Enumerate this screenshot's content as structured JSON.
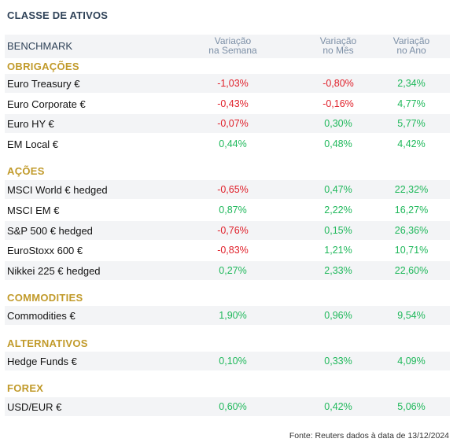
{
  "title": "CLASSE DE ATIVOS",
  "header": {
    "benchmark": "BENCHMARK",
    "week_l1": "Variação",
    "week_l2": "na Semana",
    "month_l1": "Variação",
    "month_l2": "no Mês",
    "year_l1": "Variação",
    "year_l2": "no Ano"
  },
  "sections": [
    {
      "title": "OBRIGAÇÕES"
    },
    {
      "title": "AÇÕES"
    },
    {
      "title": "COMMODITIES"
    },
    {
      "title": "ALTERNATIVOS"
    },
    {
      "title": "FOREX"
    }
  ],
  "rows": [
    {
      "name": "Euro Treasury €",
      "week": "-1,03%",
      "month": "-0,80%",
      "year": "2,34%"
    },
    {
      "name": "Euro Corporate €",
      "week": "-0,43%",
      "month": "-0,16%",
      "year": "4,77%"
    },
    {
      "name": "Euro HY €",
      "week": "-0,07%",
      "month": "0,30%",
      "year": "5,77%"
    },
    {
      "name": "EM Local €",
      "week": "0,44%",
      "month": "0,48%",
      "year": "4,42%"
    },
    {
      "name": "MSCI World € hedged",
      "week": "-0,65%",
      "month": "0,47%",
      "year": "22,32%"
    },
    {
      "name": "MSCI EM €",
      "week": "0,87%",
      "month": "2,22%",
      "year": "16,27%"
    },
    {
      "name": "S&P 500 € hedged",
      "week": "-0,76%",
      "month": "0,15%",
      "year": "26,36%"
    },
    {
      "name": "EuroStoxx 600 €",
      "week": "-0,83%",
      "month": "1,21%",
      "year": "10,71%"
    },
    {
      "name": "Nikkei 225 € hedged",
      "week": "0,27%",
      "month": "2,33%",
      "year": "22,60%"
    },
    {
      "name": "Commodities €",
      "week": "1,90%",
      "month": "0,96%",
      "year": "9,54%"
    },
    {
      "name": "Hedge Funds €",
      "week": "0,10%",
      "month": "0,33%",
      "year": "4,09%"
    },
    {
      "name": "USD/EUR €",
      "week": "0,60%",
      "month": "0,42%",
      "year": "5,06%"
    }
  ],
  "source": "Fonte: Reuters dados à data de 13/12/2024",
  "colors": {
    "negative": "#e0202a",
    "positive": "#1fb85b",
    "section": "#c19a2a",
    "row_shade": "#f3f4f6"
  }
}
